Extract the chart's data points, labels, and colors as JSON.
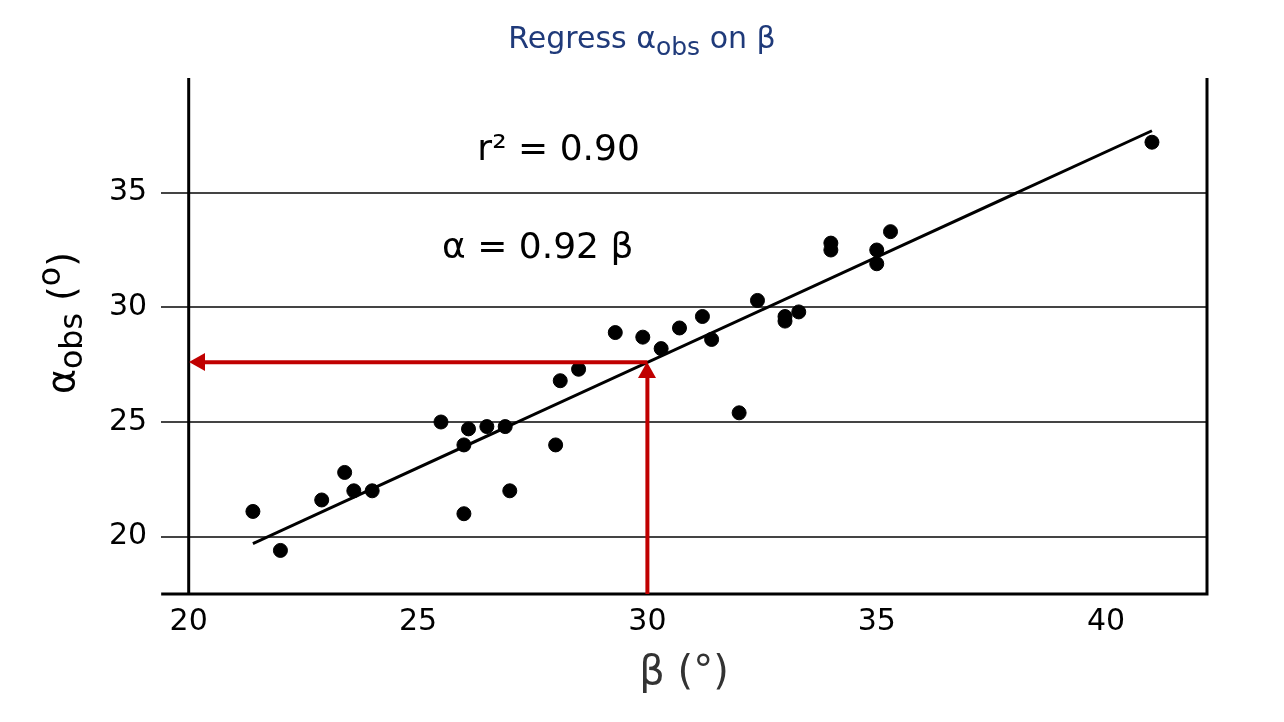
{
  "chart_data": {
    "type": "scatter",
    "title": "Regress α$_{obs}$ on β",
    "xlabel": "β (°)",
    "ylabel": "α$_{obs}$ ($^{o}$)",
    "annotations": [
      "r² = 0.90",
      "α = 0.92 β"
    ],
    "series": [
      {
        "color": "#000000",
        "marker": "circle",
        "x": [
          21.4,
          22.0,
          22.9,
          23.4,
          23.6,
          24.0,
          25.5,
          26.0,
          26.0,
          26.1,
          26.5,
          26.9,
          27.0,
          28.0,
          28.1,
          28.5,
          29.3,
          29.9,
          30.3,
          30.7,
          31.2,
          31.4,
          32.0,
          32.4,
          33.0,
          33.0,
          33.3,
          34.0,
          34.0,
          35.0,
          35.0,
          35.3,
          41.0
        ],
        "values": [
          21.1,
          19.4,
          21.6,
          22.8,
          22.0,
          22.0,
          25.0,
          24.0,
          21.0,
          24.7,
          24.8,
          24.8,
          22.0,
          24.0,
          26.8,
          27.3,
          28.9,
          28.7,
          28.2,
          29.1,
          29.6,
          28.6,
          25.4,
          30.3,
          29.4,
          29.6,
          29.8,
          32.8,
          32.5,
          32.5,
          31.9,
          33.3,
          37.2
        ]
      },
      {
        "type": "line",
        "marker": "none",
        "color": "#000000",
        "x": [
          21.4,
          41.0
        ],
        "values": [
          19.7,
          37.7
        ]
      }
    ],
    "ref_lines": [
      {
        "axis": "x",
        "value": 30,
        "color": "#c00000"
      },
      {
        "axis": "y",
        "value": 27.6,
        "color": "#c00000"
      }
    ],
    "xlim": [
      19.4,
      42.2
    ],
    "ylim": [
      17.5,
      40
    ],
    "xticks": [
      20,
      25,
      30,
      35,
      40
    ],
    "yticks": [
      20,
      25,
      30,
      35
    ],
    "grid": "y",
    "legend": false
  }
}
